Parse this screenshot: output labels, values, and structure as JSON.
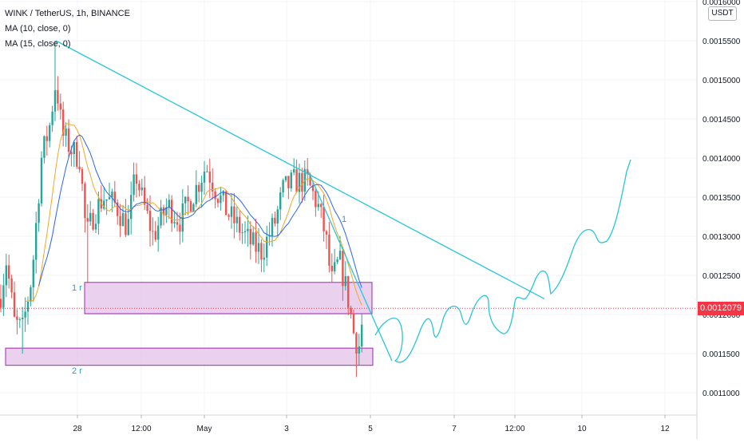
{
  "legend": {
    "symbol": "WINK / TetherUS, 1h, BINANCE",
    "ma1": "MA (10, close, 0)",
    "ma2": "MA (15, close, 0)"
  },
  "currency": "USDT",
  "last_price": "0.0012079",
  "chart_data": {
    "type": "candlestick",
    "y_axis_ticks": [
      "0.0016000",
      "0.0015500",
      "0.0015000",
      "0.0014500",
      "0.0014000",
      "0.0013500",
      "0.0013000",
      "0.0012500",
      "0.0012000",
      "0.0011500",
      "0.0011000"
    ],
    "y_axis_values": [
      0.0016,
      0.00155,
      0.0015,
      0.00145,
      0.0014,
      0.00135,
      0.0013,
      0.00125,
      0.0012,
      0.00115,
      0.0011
    ],
    "ylim": [
      0.001065,
      0.0016
    ],
    "x_axis_ticks": [
      "28",
      "12:00",
      "May",
      "3",
      "5",
      "7",
      "12:00",
      "10",
      "12"
    ],
    "last_price": 0.0012079,
    "annotations": {
      "zone_1_label": "1 r",
      "zone_2_label": "2 r",
      "wedge_label": "1",
      "zone_1_range": [
        0.0012,
        0.00124
      ],
      "zone_2_range": [
        0.001135,
        0.001157
      ],
      "trendline_start_price": 0.00155,
      "trendline_end_price": 0.00122
    },
    "colors": {
      "up": "#26a69a",
      "down": "#ef5350",
      "ma_fast": "#f5a623",
      "ma_slow": "#2962ff",
      "drawing": "#26c6da",
      "zone_fill": "#e1bee7",
      "zone_border": "#9c27b0",
      "price_line": "#f23645"
    }
  }
}
